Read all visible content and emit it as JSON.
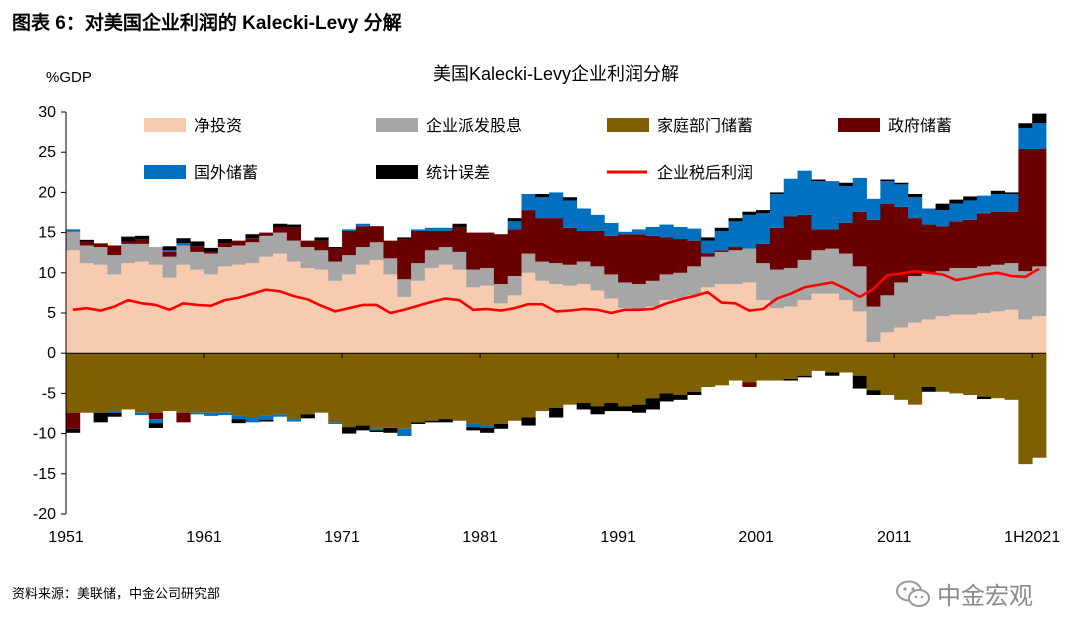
{
  "page": {
    "figure_title": "图表 6：对美国企业利润的 Kalecki-Levy 分解",
    "source_note": "资料来源：美联储，中金公司研究部",
    "watermark_text": "中金宏观"
  },
  "chart_data": {
    "type": "bar",
    "title": "美国Kalecki-Levy企业利润分解",
    "ylabel": "%GDP",
    "ylim": [
      -20,
      30
    ],
    "yticks": [
      -20,
      -15,
      -10,
      -5,
      0,
      5,
      10,
      15,
      20,
      25,
      30
    ],
    "xticklabels": [
      {
        "label": "1951",
        "index": 0
      },
      {
        "label": "1961",
        "index": 10
      },
      {
        "label": "1971",
        "index": 20
      },
      {
        "label": "1981",
        "index": 30
      },
      {
        "label": "1991",
        "index": 40
      },
      {
        "label": "2001",
        "index": 50
      },
      {
        "label": "2011",
        "index": 60
      },
      {
        "label": "1H2021",
        "index": 70
      }
    ],
    "grid": false,
    "legend_position": "top",
    "categories": [
      "1951",
      "1952",
      "1953",
      "1954",
      "1955",
      "1956",
      "1957",
      "1958",
      "1959",
      "1960",
      "1961",
      "1962",
      "1963",
      "1964",
      "1965",
      "1966",
      "1967",
      "1968",
      "1969",
      "1970",
      "1971",
      "1972",
      "1973",
      "1974",
      "1975",
      "1976",
      "1977",
      "1978",
      "1979",
      "1980",
      "1981",
      "1982",
      "1983",
      "1984",
      "1985",
      "1986",
      "1987",
      "1988",
      "1989",
      "1990",
      "1991",
      "1992",
      "1993",
      "1994",
      "1995",
      "1996",
      "1997",
      "1998",
      "1999",
      "2000",
      "2001",
      "2002",
      "2003",
      "2004",
      "2005",
      "2006",
      "2007",
      "2008",
      "2009",
      "2010",
      "2011",
      "2012",
      "2013",
      "2014",
      "2015",
      "2016",
      "2017",
      "2018",
      "2019",
      "2020",
      "1H2021"
    ],
    "series": [
      {
        "name": "净投资",
        "kind": "bar",
        "color": "#f7cbb0",
        "values": [
          12.8,
          11.2,
          11.0,
          9.8,
          11.2,
          11.4,
          11.0,
          9.4,
          11.0,
          10.4,
          9.8,
          10.8,
          11.0,
          11.2,
          12.0,
          12.4,
          11.4,
          10.6,
          10.4,
          9.0,
          9.8,
          11.0,
          11.6,
          9.8,
          7.0,
          9.0,
          10.6,
          11.0,
          10.4,
          8.2,
          8.4,
          6.2,
          7.2,
          10.0,
          9.0,
          8.6,
          8.4,
          8.6,
          7.8,
          6.8,
          5.6,
          5.4,
          5.8,
          6.6,
          6.8,
          7.2,
          8.2,
          8.6,
          8.6,
          8.8,
          6.6,
          5.6,
          5.8,
          6.6,
          7.4,
          7.4,
          6.6,
          5.2,
          1.4,
          2.6,
          3.2,
          3.8,
          4.2,
          4.6,
          4.8,
          4.8,
          5.0,
          5.2,
          5.4,
          4.2,
          4.6
        ]
      },
      {
        "name": "企业派发股息",
        "kind": "bar",
        "color": "#a6a6a6",
        "values": [
          2.3,
          2.2,
          2.2,
          2.4,
          2.4,
          2.2,
          2.2,
          2.6,
          2.4,
          2.2,
          2.6,
          2.4,
          2.4,
          2.6,
          2.6,
          2.6,
          2.6,
          2.6,
          2.4,
          2.4,
          2.4,
          2.2,
          2.2,
          2.0,
          2.2,
          2.2,
          2.2,
          2.2,
          2.2,
          2.2,
          2.2,
          2.4,
          2.4,
          2.4,
          2.4,
          2.6,
          2.6,
          2.8,
          3.0,
          3.0,
          3.2,
          3.2,
          3.2,
          3.2,
          3.2,
          3.6,
          3.8,
          4.0,
          4.2,
          4.2,
          4.6,
          4.8,
          4.8,
          5.0,
          5.4,
          5.6,
          5.8,
          5.6,
          4.4,
          4.6,
          5.6,
          5.8,
          5.8,
          5.6,
          5.8,
          5.8,
          5.8,
          5.8,
          5.8,
          6.0,
          6.2
        ]
      },
      {
        "name": "家庭部门储蓄",
        "kind": "bar",
        "color": "#7f6000",
        "values": [
          -7.4,
          -7.4,
          -7.4,
          -7.2,
          -7.0,
          -7.4,
          -7.4,
          -7.2,
          -7.4,
          -7.4,
          -7.4,
          -7.4,
          -7.8,
          -8.0,
          -7.8,
          -7.6,
          -8.2,
          -7.6,
          -7.4,
          -8.6,
          -9.2,
          -9.0,
          -9.4,
          -9.2,
          -9.4,
          -8.6,
          -8.4,
          -8.2,
          -8.4,
          -8.8,
          -9.0,
          -8.8,
          -8.4,
          -8.0,
          -7.2,
          -6.8,
          -6.4,
          -6.2,
          -6.6,
          -6.2,
          -6.6,
          -6.4,
          -5.6,
          -5.0,
          -5.2,
          -4.8,
          -4.2,
          -4.0,
          -3.4,
          -3.6,
          -3.4,
          -3.4,
          -3.2,
          -2.8,
          -2.2,
          -2.4,
          -2.4,
          -2.8,
          -4.6,
          -5.2,
          -5.8,
          -6.4,
          -4.2,
          -4.8,
          -5.0,
          -5.2,
          -5.4,
          -5.6,
          -5.8,
          -13.8,
          -13.0
        ]
      },
      {
        "name": "政府储蓄",
        "kind": "bar",
        "color": "#6b0000",
        "values": [
          -2.0,
          0.5,
          0.4,
          1.2,
          0.3,
          0.6,
          -0.8,
          0.6,
          -1.2,
          0.7,
          0.2,
          0.5,
          0.6,
          0.5,
          0.4,
          0.7,
          1.6,
          0.8,
          1.2,
          1.6,
          3.0,
          2.6,
          2.0,
          2.2,
          5.0,
          4.0,
          2.4,
          2.0,
          3.0,
          4.6,
          4.4,
          6.2,
          5.8,
          5.4,
          5.4,
          5.6,
          4.6,
          3.8,
          4.4,
          4.8,
          6.0,
          6.2,
          5.6,
          4.6,
          4.2,
          3.2,
          0.4,
          0.2,
          0.4,
          -0.6,
          2.4,
          5.2,
          6.4,
          5.6,
          2.6,
          2.4,
          3.8,
          6.8,
          10.8,
          11.4,
          9.4,
          7.2,
          6.0,
          5.6,
          5.8,
          6.0,
          6.6,
          6.6,
          6.4,
          15.2,
          14.6
        ]
      },
      {
        "name": "国外储蓄",
        "kind": "bar",
        "color": "#0070c0",
        "values": [
          0.3,
          0.0,
          0.1,
          -0.2,
          0.0,
          -0.3,
          -0.5,
          0.2,
          0.3,
          -0.2,
          -0.4,
          -0.3,
          -0.4,
          -0.6,
          -0.5,
          -0.3,
          -0.3,
          0.0,
          0.0,
          -0.2,
          0.2,
          0.3,
          -0.2,
          -0.1,
          -0.9,
          0.2,
          0.4,
          0.4,
          0.0,
          -0.4,
          -0.3,
          0.0,
          1.0,
          2.0,
          2.6,
          3.2,
          3.4,
          2.8,
          2.0,
          1.6,
          0.3,
          0.6,
          1.1,
          1.6,
          1.5,
          1.5,
          1.6,
          2.4,
          3.2,
          4.2,
          3.8,
          4.2,
          4.7,
          5.5,
          6.0,
          6.0,
          4.6,
          4.2,
          2.6,
          2.8,
          2.8,
          2.6,
          2.0,
          2.0,
          2.2,
          2.4,
          2.2,
          2.2,
          2.2,
          2.6,
          3.2
        ]
      },
      {
        "name": "统计误差",
        "kind": "bar",
        "color": "#000000",
        "values": [
          -0.5,
          0.2,
          -1.2,
          -0.5,
          0.6,
          0.4,
          -0.6,
          0.5,
          0.6,
          0.6,
          0.5,
          0.5,
          -0.5,
          0.5,
          -0.2,
          0.4,
          0.4,
          -0.5,
          0.4,
          0.2,
          -0.8,
          -0.6,
          -0.2,
          -0.6,
          0.2,
          -0.2,
          -0.2,
          -0.4,
          0.5,
          -0.4,
          -0.6,
          -0.6,
          0.4,
          -1.0,
          0.4,
          -1.2,
          0.4,
          -0.8,
          -1.0,
          -1.0,
          -0.6,
          -1.0,
          -1.4,
          -1.0,
          -0.6,
          -0.4,
          0.4,
          0.4,
          0.4,
          0.4,
          0.4,
          0.2,
          -0.2,
          -0.2,
          0.2,
          -0.4,
          0.4,
          -1.6,
          -0.6,
          0.2,
          0.2,
          0.4,
          -0.6,
          0.8,
          0.5,
          0.5,
          -0.3,
          0.4,
          0.2,
          0.6,
          1.2
        ]
      },
      {
        "name": "企业税后利润",
        "kind": "line",
        "color": "#ff0000",
        "values": [
          5.4,
          5.6,
          5.3,
          5.8,
          6.6,
          6.2,
          6.0,
          5.4,
          6.2,
          6.0,
          5.9,
          6.6,
          6.9,
          7.4,
          7.9,
          7.7,
          7.1,
          6.7,
          5.9,
          5.2,
          5.6,
          6.0,
          6.0,
          5.0,
          5.4,
          5.9,
          6.4,
          6.8,
          6.6,
          5.4,
          5.5,
          5.3,
          5.6,
          6.1,
          6.1,
          5.2,
          5.3,
          5.5,
          5.4,
          5.0,
          5.4,
          5.4,
          5.5,
          6.2,
          6.7,
          7.1,
          7.6,
          6.3,
          6.2,
          5.3,
          5.5,
          6.8,
          7.4,
          8.2,
          8.5,
          8.8,
          8.0,
          7.0,
          8.0,
          9.7,
          9.9,
          10.2,
          10.0,
          9.8,
          9.1,
          9.4,
          9.8,
          10.0,
          9.6,
          9.5,
          10.5
        ]
      }
    ]
  }
}
